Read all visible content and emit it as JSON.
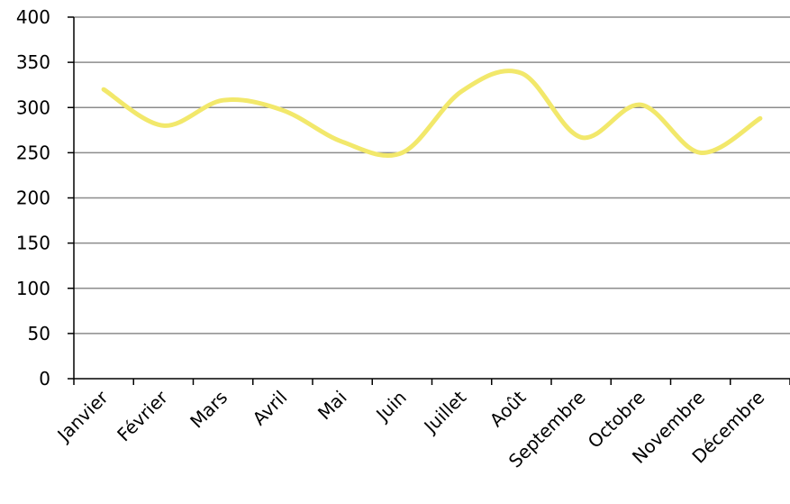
{
  "chart_data": {
    "type": "line",
    "categories": [
      "Janvier",
      "Février",
      "Mars",
      "Avril",
      "Mai",
      "Juin",
      "Juillet",
      "Août",
      "Septembre",
      "Octobre",
      "Novembre",
      "Décembre"
    ],
    "series": [
      {
        "values": [
          320,
          280,
          308,
          297,
          262,
          250,
          318,
          338,
          267,
          303,
          250,
          288
        ],
        "color": "#f2e86b"
      }
    ],
    "ylim": [
      0,
      400
    ],
    "yticks": [
      0,
      50,
      100,
      150,
      200,
      250,
      300,
      350,
      400
    ],
    "grid": true,
    "smooth": true,
    "title": "",
    "xlabel": "",
    "ylabel": ""
  }
}
